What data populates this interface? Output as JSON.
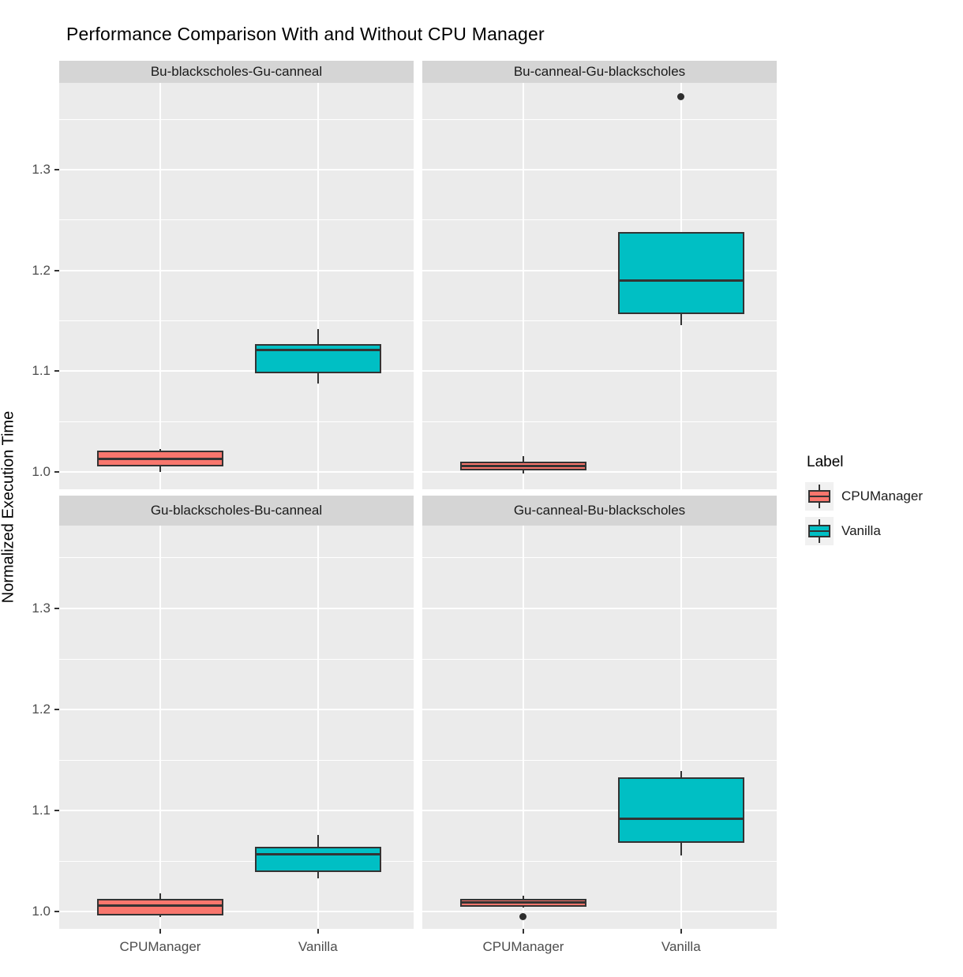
{
  "title": "Performance Comparison With and Without CPU Manager",
  "y_axis": {
    "label": "Normalized Execution Time",
    "tick_labels": [
      "1.0",
      "1.1",
      "1.2",
      "1.3"
    ],
    "tick_values": [
      1.0,
      1.1,
      1.2,
      1.3
    ],
    "minor_tick_values": [
      1.05,
      1.15,
      1.25,
      1.35
    ]
  },
  "x_axis": {
    "categories": [
      "CPUManager",
      "Vanilla"
    ]
  },
  "legend": {
    "title": "Label",
    "entries": [
      {
        "label": "CPUManager",
        "color": "#F8766D"
      },
      {
        "label": "Vanilla",
        "color": "#00BFC4"
      }
    ]
  },
  "colors": {
    "panel_background": "#EBEBEB",
    "strip_background": "#D5D5D5",
    "gridline": "#FFFFFF",
    "box_outline": "#333333",
    "cpumanager_fill": "#F8766D",
    "vanilla_fill": "#00BFC4",
    "tick_text": "#4D4D4D"
  },
  "chart_data": {
    "type": "boxplot",
    "layout": "2x2 facet grid, shared axes, legend right",
    "ylabel": "Normalized Execution Time",
    "ylim_visible": [
      0.983,
      1.386
    ],
    "grid": "white major and minor horizontal gridlines on grey panel; vertical gridline per category",
    "categories": [
      "CPUManager",
      "Vanilla"
    ],
    "facets": [
      {
        "name": "Bu-blackscholes-Gu-canneal",
        "row": 0,
        "col": 0,
        "boxes": [
          {
            "group": "CPUManager",
            "color": "#F8766D",
            "whisker_low": 1.0,
            "q1": 1.006,
            "median": 1.013,
            "q3": 1.021,
            "whisker_high": 1.023,
            "outliers": []
          },
          {
            "group": "Vanilla",
            "color": "#00BFC4",
            "whisker_low": 1.088,
            "q1": 1.098,
            "median": 1.121,
            "q3": 1.127,
            "whisker_high": 1.142,
            "outliers": []
          }
        ]
      },
      {
        "name": "Bu-canneal-Gu-blackscholes",
        "row": 0,
        "col": 1,
        "boxes": [
          {
            "group": "CPUManager",
            "color": "#F8766D",
            "whisker_low": 0.999,
            "q1": 1.002,
            "median": 1.006,
            "q3": 1.01,
            "whisker_high": 1.016,
            "outliers": []
          },
          {
            "group": "Vanilla",
            "color": "#00BFC4",
            "whisker_low": 1.146,
            "q1": 1.157,
            "median": 1.19,
            "q3": 1.238,
            "whisker_high": 1.238,
            "outliers": [
              1.372
            ]
          }
        ]
      },
      {
        "name": "Gu-blackscholes-Bu-canneal",
        "row": 1,
        "col": 0,
        "boxes": [
          {
            "group": "CPUManager",
            "color": "#F8766D",
            "whisker_low": 0.995,
            "q1": 0.996,
            "median": 1.006,
            "q3": 1.013,
            "whisker_high": 1.018,
            "outliers": []
          },
          {
            "group": "Vanilla",
            "color": "#00BFC4",
            "whisker_low": 1.033,
            "q1": 1.039,
            "median": 1.057,
            "q3": 1.064,
            "whisker_high": 1.076,
            "outliers": []
          }
        ]
      },
      {
        "name": "Gu-canneal-Bu-blackscholes",
        "row": 1,
        "col": 1,
        "boxes": [
          {
            "group": "CPUManager",
            "color": "#F8766D",
            "whisker_low": 1.004,
            "q1": 1.005,
            "median": 1.009,
            "q3": 1.013,
            "whisker_high": 1.016,
            "outliers": [
              0.995
            ]
          },
          {
            "group": "Vanilla",
            "color": "#00BFC4",
            "whisker_low": 1.056,
            "q1": 1.068,
            "median": 1.092,
            "q3": 1.133,
            "whisker_high": 1.139,
            "outliers": []
          }
        ]
      }
    ]
  }
}
